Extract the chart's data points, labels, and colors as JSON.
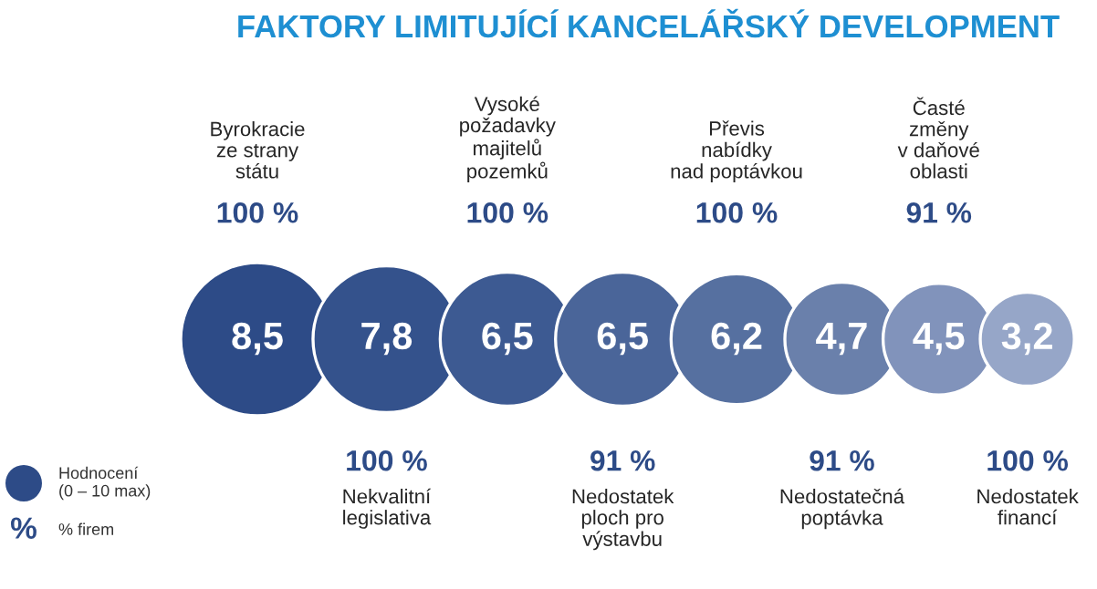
{
  "chart_data": {
    "type": "other",
    "title": "FAKTORY LIMITUJÍCÍ KANCELÁŘSKÝ DEVELOPMENT",
    "categories": [
      "Byrokracie\nze strany\nstátu",
      "Nekvalitní\nlegislativa",
      "Vysoké\npožadavky\nmajitelů\npozemků",
      "Nedostatek\nploch pro\nvýstavbu",
      "Převis\nnabídky\nnad poptávkou",
      "Nedostatečná\npoptávka",
      "Časté\nzměny\nv daňové\noblasti",
      "Nedostatek\nfinancí"
    ],
    "series": [
      {
        "name": "Hodnocení\n(0 – 10 max)",
        "values": [
          8.5,
          7.8,
          6.5,
          6.5,
          6.2,
          4.7,
          4.5,
          3.2
        ],
        "value_labels": [
          "8,5",
          "7,8",
          "6,5",
          "6,5",
          "6,2",
          "4,7",
          "4,5",
          "3,2"
        ],
        "color": "#2d4b87",
        "colors": [
          "#2d4b87",
          "#34528c",
          "#3d5a92",
          "#4a6599",
          "#5670a0",
          "#6a80ab",
          "#8193bb",
          "#96a6c8"
        ]
      },
      {
        "name": "% firem",
        "values": [
          100,
          100,
          100,
          91,
          100,
          91,
          91,
          100
        ],
        "value_labels": [
          "100 %",
          "100 %",
          "100 %",
          "91 %",
          "100 %",
          "91 %",
          "91 %",
          "100 %"
        ]
      }
    ],
    "annotations": [
      "%"
    ],
    "legend": "left"
  }
}
